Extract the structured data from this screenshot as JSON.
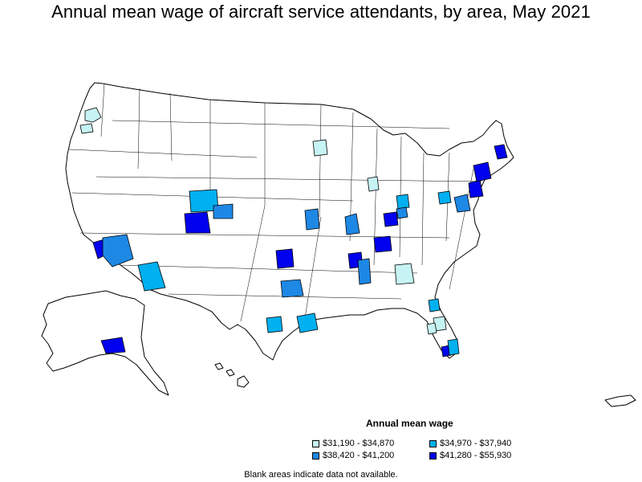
{
  "title": "Annual mean wage of aircraft service attendants, by area, May 2021",
  "legend": {
    "title": "Annual mean wage",
    "items": [
      {
        "label": "$31,190 - $34,870",
        "color": "#c6f3f3"
      },
      {
        "label": "$34,970 - $37,940",
        "color": "#00b0f0"
      },
      {
        "label": "$38,420 - $41,200",
        "color": "#1e88e5"
      },
      {
        "label": "$41,280 - $55,930",
        "color": "#0000ee"
      }
    ]
  },
  "footnote": "Blank areas indicate data not available.",
  "regions": [
    {
      "name": "seattle-area",
      "class": 0
    },
    {
      "name": "portland-area",
      "class": 0
    },
    {
      "name": "minneapolis-area",
      "class": 0
    },
    {
      "name": "denver-area",
      "class": 1
    },
    {
      "name": "colorado-springs-area",
      "class": 3
    },
    {
      "name": "colorado-east-area",
      "class": 2
    },
    {
      "name": "los-angeles-area",
      "class": 3
    },
    {
      "name": "phoenix-area",
      "class": 2
    },
    {
      "name": "tucson-area",
      "class": 1
    },
    {
      "name": "oklahoma-area",
      "class": 3
    },
    {
      "name": "dallas-area",
      "class": 2
    },
    {
      "name": "houston-area",
      "class": 1
    },
    {
      "name": "austin-area",
      "class": 1
    },
    {
      "name": "kansas-city-area",
      "class": 2
    },
    {
      "name": "st-louis-area",
      "class": 2
    },
    {
      "name": "memphis-area",
      "class": 3
    },
    {
      "name": "nashville-area",
      "class": 3
    },
    {
      "name": "chicago-area",
      "class": 0
    },
    {
      "name": "indianapolis-area",
      "class": 1
    },
    {
      "name": "cincinnati-area",
      "class": 3
    },
    {
      "name": "louisville-area",
      "class": 2
    },
    {
      "name": "atlanta-area",
      "class": 0
    },
    {
      "name": "birmingham-area",
      "class": 2
    },
    {
      "name": "jacksonville-area",
      "class": 1
    },
    {
      "name": "orlando-area",
      "class": 0
    },
    {
      "name": "tampa-area",
      "class": 0
    },
    {
      "name": "miami-area",
      "class": 3
    },
    {
      "name": "palm-beach-area",
      "class": 1
    },
    {
      "name": "washington-dc-area",
      "class": 2
    },
    {
      "name": "philadelphia-area",
      "class": 3
    },
    {
      "name": "new-york-area",
      "class": 3
    },
    {
      "name": "boston-area",
      "class": 3
    },
    {
      "name": "pittsburgh-area",
      "class": 1
    },
    {
      "name": "anchorage-area",
      "class": 3
    }
  ]
}
